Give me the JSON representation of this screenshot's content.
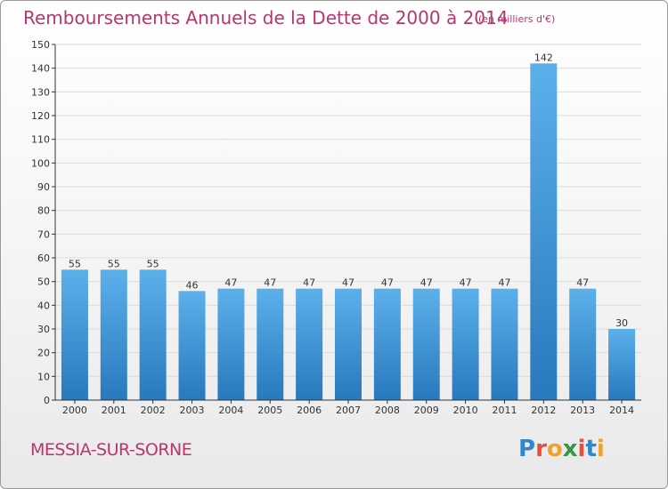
{
  "header": {
    "title": "Remboursements Annuels de la Dette de 2000 à 2014",
    "unit": "(en milliers d'€)"
  },
  "footer": {
    "commune": "MESSIA-SUR-SORNE",
    "logo": "Proxiti"
  },
  "colors": {
    "title": "#b83570",
    "bar_light": "#5aaee8",
    "bar_dark": "#2a7cc0",
    "axis": "#333333",
    "grid": "#dcdcdc"
  },
  "chart_data": {
    "type": "bar",
    "categories": [
      "2000",
      "2001",
      "2002",
      "2003",
      "2004",
      "2005",
      "2006",
      "2007",
      "2008",
      "2009",
      "2010",
      "2011",
      "2012",
      "2013",
      "2014"
    ],
    "values": [
      55,
      55,
      55,
      46,
      47,
      47,
      47,
      47,
      47,
      47,
      47,
      47,
      142,
      47,
      30
    ],
    "ylim": [
      0,
      150
    ],
    "yticks": [
      0,
      10,
      20,
      30,
      40,
      50,
      60,
      70,
      80,
      90,
      100,
      110,
      120,
      130,
      140,
      150
    ],
    "grid": true,
    "xlabel": "",
    "ylabel": ""
  }
}
